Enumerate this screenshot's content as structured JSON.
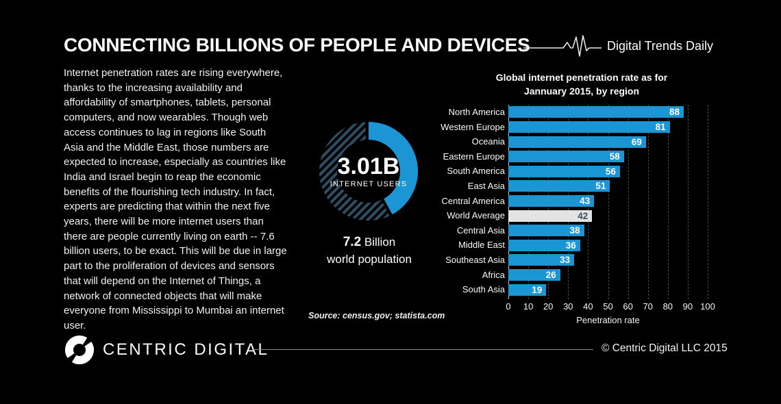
{
  "header": {
    "title": "CONNECTING BILLIONS OF PEOPLE AND DEVICES",
    "brand": "Digital Trends Daily"
  },
  "intro": {
    "text": "Internet penetration rates are rising everywhere, thanks to the increasing availability and affordability of smartphones, tablets, personal computers, and now wearables. Though web access continues to lag in regions like South Asia and the Middle East, those numbers are expected to increase, especially as countries like India and Israel begin to reap the economic benefits of the flourishing tech industry. In fact, experts are predicting that within the next five years, there will be more internet users than there are people currently living on earth -- 7.6 billion users, to be exact. This will be due in large part to the proliferation of devices and sensors that will depend on the Internet of Things, a network of connected objects that will make everyone from Mississippi to Mumbai an internet user."
  },
  "donut": {
    "center_value": "3.01B",
    "center_label": "INTERNET USERS",
    "share_percent": 42,
    "filled_color": "#1b95d4",
    "hatch_color": "#2d4e63",
    "population_value": "7.2",
    "population_unit": " Billion",
    "population_sub": "world population"
  },
  "source_note": "Source: census.gov; statista.com",
  "chart_data": {
    "type": "bar",
    "orientation": "horizontal",
    "title_line1": "Global internet penetration rate as for",
    "title_line2": "Jannuary 2015, by region",
    "categories": [
      "North America",
      "Western Europe",
      "Oceania",
      "Eastern Europe",
      "South America",
      "East Asia",
      "Central America",
      "World Average",
      "Central Asia",
      "Middle East",
      "Southeast Asia",
      "Africa",
      "South Asia"
    ],
    "values": [
      88,
      81,
      69,
      58,
      56,
      51,
      43,
      42,
      38,
      36,
      33,
      26,
      19
    ],
    "highlight_category": "World Average",
    "xlabel": "Penetration rate",
    "xlim": [
      0,
      100
    ],
    "xticks": [
      0,
      10,
      20,
      30,
      40,
      50,
      60,
      70,
      80,
      90,
      100
    ],
    "bar_color": "#1b95d4",
    "highlight_bar_color": "#e3e3e3",
    "grid": "dashed-vertical",
    "legend": "none"
  },
  "footer": {
    "logo_text": "CENTRIC DIGITAL",
    "copyright": "© Centric Digital LLC 2015"
  }
}
